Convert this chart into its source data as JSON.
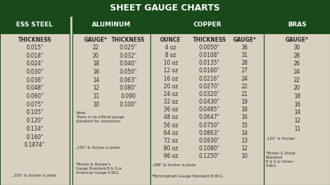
{
  "title": "SHEET GAUGE CHARTS",
  "title_bg": "#1a4a1a",
  "title_color": "#ffffff",
  "bg_color": "#d8d0c0",
  "section_header_bg": "#1a4a1a",
  "section_header_color": "#ffffff",
  "text_color": "#2a2a2a",
  "border_color": "#1a4a1a",
  "stainless_steel": {
    "header": "ESS STEEL",
    "col_header": "THICKNESS",
    "data": [
      "0.015\"",
      "0.018\"",
      "0.024\"",
      "0.030\"",
      "0.036\"",
      "0.048\"",
      "0.060\"",
      "0.075\"",
      "0.105\"",
      "0.120\"",
      "0.134\"",
      "0.160\"",
      "0.1874\""
    ],
    "footer": ".250\" & thicker is plate"
  },
  "aluminum": {
    "header": "ALUMINUM",
    "col1_header": "GAUGE*",
    "col2_header": "THICKNESS",
    "gauge": [
      "22",
      "20",
      "18",
      "16",
      "14",
      "12",
      "11",
      "10"
    ],
    "thickness": [
      "0.025\"",
      "0.032\"",
      "0.040\"",
      "0.050\"",
      "0.063\"",
      "0.080\"",
      "0.090",
      "0.100\""
    ],
    "note": "Note:\nThere is no official gauge\nstandard for aluminum.",
    "footer": ".250\" & thicker is plate",
    "footnote": "*Brown & Sharpe's\nGauge Standard B & S or\nAmerican Gauge A.W.G."
  },
  "copper": {
    "header": "COPPER",
    "col1_header": "OUNCE",
    "col2_header": "THICKNESS",
    "col3_header": "GAUGE*",
    "ounce": [
      "4 oz",
      "8 oz",
      "10 oz",
      "12 oz",
      "16 oz",
      "20 oz",
      "24 oz",
      "32 oz",
      "36 oz",
      "48 oz",
      "56 oz",
      "64 oz",
      "72 oz",
      "80 oz",
      "96 oz"
    ],
    "thickness": [
      "0.0050\"",
      "0.0108\"",
      "0.0135\"",
      "0.0160\"",
      "0.0216\"",
      "0.0270\"",
      "0.0320\"",
      "0.0430\"",
      "0.0485\"",
      "0.0647\"",
      "0.0750\"",
      "0.0863\"",
      "0.0930\"",
      "0.1080\"",
      "0.1250\""
    ],
    "gauge": [
      "36",
      "31",
      "28",
      "27",
      "24",
      "22",
      "21",
      "19",
      "18",
      "16",
      "15",
      "14",
      "13",
      "12",
      "10"
    ],
    "footer": ".188\" & thicker is plate",
    "footnote": "*Birmingham Gauge Standard B.W.G."
  },
  "brass": {
    "header": "BRAS",
    "col_header": "GAUGE*",
    "gauge": [
      "30",
      "28",
      "26",
      "24",
      "22",
      "20",
      "18",
      "16",
      "14",
      "12",
      "11"
    ],
    "footer": ".125\" & thicker",
    "footnote": "*Brown & Sharp\nStandard\nB & S or Ameri-\nA.W.G."
  }
}
